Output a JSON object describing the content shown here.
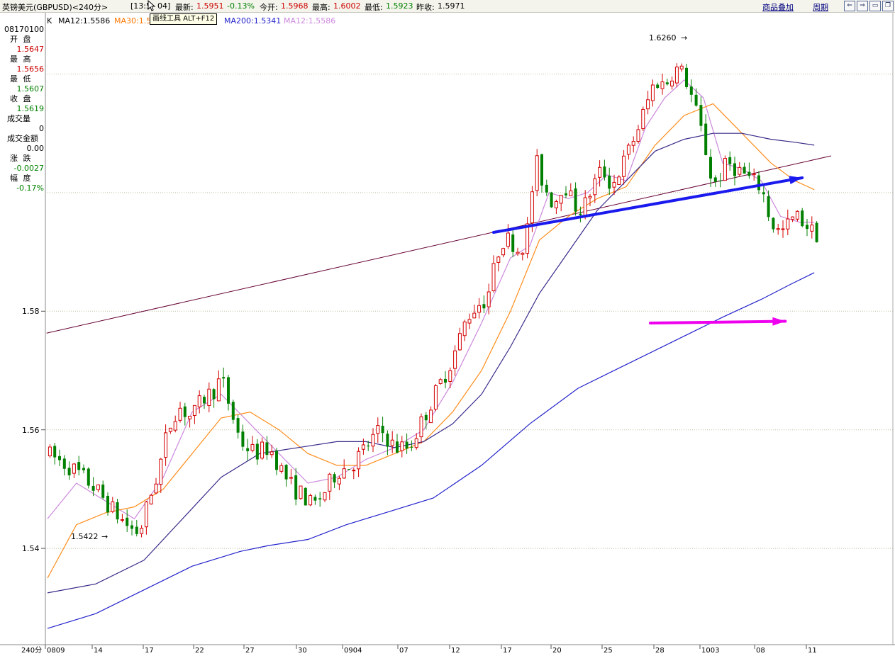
{
  "topbar": {
    "symbol": "英镑美元(GBPUSD)<240分>",
    "time": "[13:5",
    "time_tail": "04]",
    "latest_label": "最新:",
    "latest": "1.5951",
    "change": "-0.13%",
    "open_label": "今开:",
    "open": "1.5968",
    "high_label": "最高:",
    "high": "1.6002",
    "low_label": "最低:",
    "low": "1.5923",
    "prev_label": "昨收:",
    "prev": "1.5971",
    "overlay_link": "商品叠加",
    "period_link": "周期"
  },
  "tooltip": "画线工具 ALT+F12",
  "indicators": {
    "k": "K",
    "ma12": "MA12:1.5586",
    "ma30": "MA30:1.5",
    "ma200": "MA200:1.5341",
    "ma12b": "MA12:1.5586"
  },
  "colors": {
    "up": "#d40000",
    "down": "#008000",
    "ma12": "#cc88dd",
    "ma30": "#ff8c1a",
    "ma_mid": "#3a2a8a",
    "ma200": "#2222cc",
    "drawn_blue": "#1a1aee",
    "drawn_magenta": "#ee00ee",
    "trend": "#660033",
    "grid": "#bfbf9f"
  },
  "info_panel": {
    "date": "08170100",
    "rows": [
      {
        "label": "开  盘",
        "value": "1.5647",
        "color": "#cc0000"
      },
      {
        "label": "最  高",
        "value": "1.5656",
        "color": "#cc0000"
      },
      {
        "label": "最  低",
        "value": "1.5607",
        "color": "#008000"
      },
      {
        "label": "收  盘",
        "value": "1.5619",
        "color": "#008000"
      },
      {
        "label": "成交量",
        "value": "0",
        "color": "#000000"
      },
      {
        "label": "成交金额",
        "value": "0.00",
        "color": "#000000"
      },
      {
        "label": "涨  跌",
        "value": "-0.0027",
        "color": "#008000"
      },
      {
        "label": "幅  度",
        "value": "-0.17%",
        "color": "#008000"
      }
    ]
  },
  "price_axis": [
    "1.58",
    "1.56",
    "1.54"
  ],
  "period_label": "240分",
  "date_axis": [
    "0809",
    "14",
    "17",
    "22",
    "27",
    "30",
    "0904",
    "07",
    "12",
    "17",
    "20",
    "25",
    "28",
    "1003",
    "08",
    "11"
  ],
  "chart_data": {
    "type": "candlestick",
    "title": "英镑美元(GBPUSD)<240分>",
    "ylim": [
      1.522,
      1.632
    ],
    "y_ticks": [
      1.54,
      1.56,
      1.58
    ],
    "annotations": [
      {
        "text": "1.6260",
        "value": 1.626
      },
      {
        "text": "1.5422",
        "value": 1.5422
      }
    ],
    "price_path": [
      [
        0,
        1.556
      ],
      [
        6,
        1.553
      ],
      [
        10,
        1.55
      ],
      [
        14,
        1.546
      ],
      [
        17,
        1.5435
      ],
      [
        19,
        1.5425
      ],
      [
        21,
        1.548
      ],
      [
        23,
        1.553
      ],
      [
        25,
        1.56
      ],
      [
        27,
        1.564
      ],
      [
        30,
        1.562
      ],
      [
        32,
        1.565
      ],
      [
        35,
        1.567
      ],
      [
        36,
        1.569
      ],
      [
        37,
        1.566
      ],
      [
        40,
        1.558
      ],
      [
        43,
        1.556
      ],
      [
        46,
        1.557
      ],
      [
        49,
        1.5525
      ],
      [
        51,
        1.55
      ],
      [
        53,
        1.549
      ],
      [
        55,
        1.547
      ],
      [
        57,
        1.549
      ],
      [
        60,
        1.553
      ],
      [
        63,
        1.554
      ],
      [
        66,
        1.557
      ],
      [
        69,
        1.56
      ],
      [
        72,
        1.557
      ],
      [
        75,
        1.557
      ],
      [
        78,
        1.562
      ],
      [
        81,
        1.567
      ],
      [
        84,
        1.572
      ],
      [
        87,
        1.579
      ],
      [
        89,
        1.581
      ],
      [
        91,
        1.582
      ],
      [
        92,
        1.585
      ],
      [
        94,
        1.592
      ],
      [
        96,
        1.592
      ],
      [
        98,
        1.59
      ],
      [
        100,
        1.595
      ],
      [
        101,
        1.606
      ],
      [
        103,
        1.601
      ],
      [
        105,
        1.598
      ],
      [
        107,
        1.602
      ],
      [
        109,
        1.598
      ],
      [
        111,
        1.597
      ],
      [
        113,
        1.601
      ],
      [
        115,
        1.604
      ],
      [
        117,
        1.601
      ],
      [
        120,
        1.606
      ],
      [
        123,
        1.612
      ],
      [
        126,
        1.619
      ],
      [
        128,
        1.618
      ],
      [
        130,
        1.621
      ],
      [
        132,
        1.62
      ],
      [
        134,
        1.615
      ],
      [
        136,
        1.609
      ],
      [
        138,
        1.601
      ],
      [
        141,
        1.605
      ],
      [
        143,
        1.604
      ],
      [
        146,
        1.602
      ],
      [
        148,
        1.601
      ],
      [
        150,
        1.595
      ],
      [
        152,
        1.593
      ],
      [
        155,
        1.596
      ],
      [
        157,
        1.595
      ],
      [
        159,
        1.593
      ]
    ],
    "series": [
      {
        "name": "MA12",
        "values": [
          [
            0,
            1.545
          ],
          [
            6,
            1.551
          ],
          [
            12,
            1.548
          ],
          [
            18,
            1.545
          ],
          [
            24,
            1.552
          ],
          [
            30,
            1.563
          ],
          [
            36,
            1.566
          ],
          [
            42,
            1.561
          ],
          [
            48,
            1.556
          ],
          [
            54,
            1.551
          ],
          [
            60,
            1.552
          ],
          [
            66,
            1.555
          ],
          [
            72,
            1.557
          ],
          [
            78,
            1.56
          ],
          [
            84,
            1.568
          ],
          [
            90,
            1.578
          ],
          [
            96,
            1.589
          ],
          [
            100,
            1.591
          ],
          [
            104,
            1.6
          ],
          [
            108,
            1.599
          ],
          [
            112,
            1.6
          ],
          [
            116,
            1.603
          ],
          [
            120,
            1.602
          ],
          [
            124,
            1.611
          ],
          [
            128,
            1.616
          ],
          [
            132,
            1.619
          ],
          [
            136,
            1.616
          ],
          [
            140,
            1.605
          ],
          [
            144,
            1.604
          ],
          [
            148,
            1.602
          ],
          [
            152,
            1.596
          ],
          [
            156,
            1.595
          ],
          [
            159,
            1.595
          ]
        ]
      },
      {
        "name": "MA30",
        "values": [
          [
            0,
            1.535
          ],
          [
            6,
            1.544
          ],
          [
            12,
            1.546
          ],
          [
            18,
            1.547
          ],
          [
            24,
            1.55
          ],
          [
            30,
            1.556
          ],
          [
            36,
            1.562
          ],
          [
            42,
            1.563
          ],
          [
            48,
            1.56
          ],
          [
            54,
            1.556
          ],
          [
            60,
            1.554
          ],
          [
            66,
            1.554
          ],
          [
            72,
            1.556
          ],
          [
            78,
            1.558
          ],
          [
            84,
            1.563
          ],
          [
            90,
            1.57
          ],
          [
            96,
            1.58
          ],
          [
            102,
            1.592
          ],
          [
            108,
            1.596
          ],
          [
            114,
            1.599
          ],
          [
            120,
            1.601
          ],
          [
            126,
            1.608
          ],
          [
            132,
            1.613
          ],
          [
            138,
            1.615
          ],
          [
            144,
            1.61
          ],
          [
            150,
            1.605
          ],
          [
            155,
            1.602
          ],
          [
            159,
            1.6005
          ]
        ]
      },
      {
        "name": "",
        "values": [
          [
            0,
            1.5325
          ],
          [
            10,
            1.534
          ],
          [
            20,
            1.538
          ],
          [
            28,
            1.545
          ],
          [
            36,
            1.552
          ],
          [
            44,
            1.556
          ],
          [
            52,
            1.557
          ],
          [
            60,
            1.558
          ],
          [
            66,
            1.558
          ],
          [
            72,
            1.557
          ],
          [
            78,
            1.558
          ],
          [
            84,
            1.561
          ],
          [
            90,
            1.566
          ],
          [
            96,
            1.574
          ],
          [
            102,
            1.583
          ],
          [
            108,
            1.59
          ],
          [
            114,
            1.597
          ],
          [
            120,
            1.602
          ],
          [
            126,
            1.607
          ],
          [
            132,
            1.609
          ],
          [
            138,
            1.61
          ],
          [
            144,
            1.61
          ],
          [
            150,
            1.609
          ],
          [
            155,
            1.6085
          ],
          [
            159,
            1.608
          ]
        ]
      },
      {
        "name": "MA200",
        "values": [
          [
            0,
            1.5265
          ],
          [
            10,
            1.529
          ],
          [
            20,
            1.533
          ],
          [
            30,
            1.537
          ],
          [
            40,
            1.5395
          ],
          [
            46,
            1.5405
          ],
          [
            54,
            1.5415
          ],
          [
            62,
            1.544
          ],
          [
            70,
            1.546
          ],
          [
            80,
            1.5485
          ],
          [
            90,
            1.554
          ],
          [
            100,
            1.561
          ],
          [
            110,
            1.567
          ],
          [
            120,
            1.571
          ],
          [
            130,
            1.575
          ],
          [
            140,
            1.579
          ],
          [
            148,
            1.582
          ],
          [
            154,
            1.5845
          ],
          [
            159,
            1.5865
          ]
        ]
      }
    ],
    "drawn_lines": [
      {
        "color": "trend",
        "from": [
          -0.2,
          1.5763
        ],
        "to": [
          162.5,
          1.6062
        ]
      },
      {
        "color": "blue",
        "from": [
          92.5,
          1.5933
        ],
        "to": [
          156.5,
          1.6025
        ],
        "arrow": true
      },
      {
        "color": "magenta",
        "from": [
          125,
          1.578
        ],
        "to": [
          153,
          1.5783
        ],
        "arrow": true
      }
    ]
  }
}
